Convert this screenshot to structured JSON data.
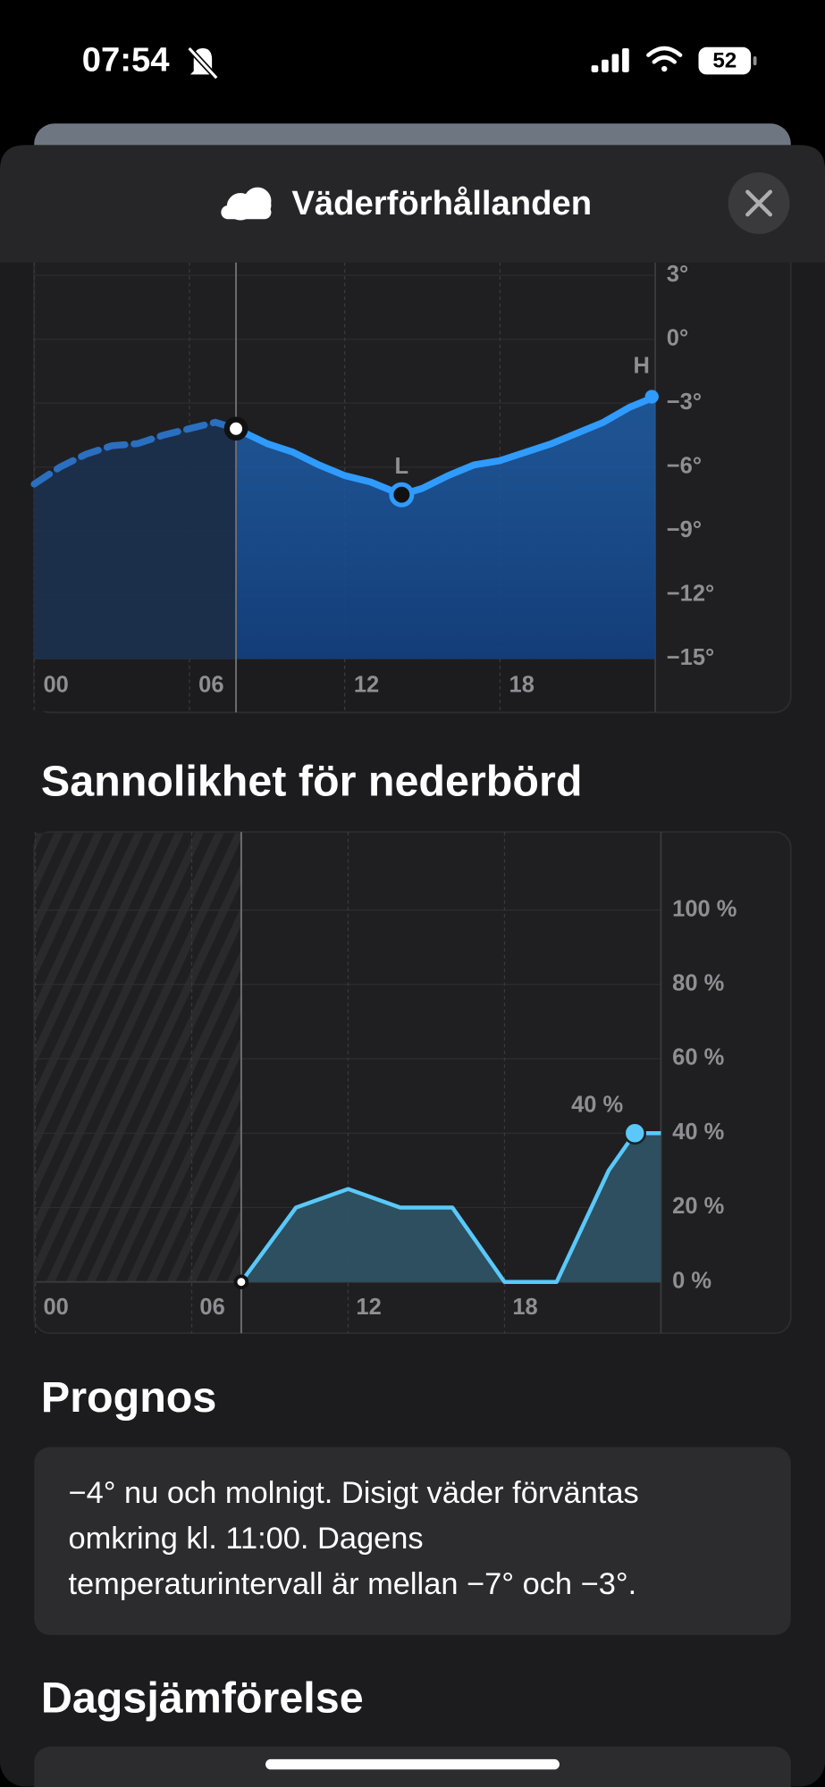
{
  "status_bar": {
    "time": "07:54",
    "battery": "52"
  },
  "header": {
    "title": "Väderförhållanden"
  },
  "temperature_chart": {
    "type": "line",
    "x_past": [
      0,
      1,
      2,
      3,
      4,
      5,
      6,
      7,
      7.8
    ],
    "past": [
      -6.8,
      -6.0,
      -5.4,
      -5.0,
      -4.9,
      -4.5,
      -4.2,
      -3.9,
      -4.2
    ],
    "x": [
      7.8,
      9,
      10,
      11,
      12,
      13,
      14.2,
      15,
      16,
      17,
      18,
      19,
      20,
      21,
      22,
      23,
      24
    ],
    "values": [
      -4.2,
      -4.9,
      -5.3,
      -5.9,
      -6.4,
      -6.7,
      -7.3,
      -7.0,
      -6.4,
      -5.9,
      -5.7,
      -5.3,
      -4.9,
      -4.4,
      -3.9,
      -3.2,
      -2.7
    ],
    "now": 7.8,
    "low_label": "L",
    "high_label": "H",
    "color": "#2f9bff",
    "xlim": [
      0,
      24
    ],
    "ylim": [
      -15,
      3.6
    ],
    "xticks": [
      {
        "value": 0,
        "label": "00"
      },
      {
        "value": 6,
        "label": "06"
      },
      12,
      18
    ],
    "yticks": [
      {
        "value": 3,
        "label": "3°"
      },
      {
        "value": 0,
        "label": "0°"
      },
      {
        "value": -3,
        "label": "−3°"
      },
      {
        "value": -6,
        "label": "−6°"
      },
      {
        "value": -9,
        "label": "−9°"
      },
      {
        "value": -12,
        "label": "−12°"
      },
      {
        "value": -15,
        "label": "−15°"
      }
    ]
  },
  "precipitation_chart": {
    "type": "area",
    "title": "Sannolikhet för nederbörd",
    "x": [
      7.9,
      10,
      12,
      14,
      16,
      18,
      20,
      22,
      23,
      24
    ],
    "values": [
      0,
      20,
      25,
      20,
      20,
      0,
      0,
      30,
      40,
      40
    ],
    "value_labels": [
      null,
      null,
      null,
      null,
      null,
      null,
      null,
      null,
      "40 %",
      null
    ],
    "now": 7.9,
    "color": "#5ac8fa",
    "xlim": [
      0,
      24
    ],
    "ylim": [
      0,
      121
    ],
    "xticks": [
      {
        "value": 0,
        "label": "00"
      },
      {
        "value": 6,
        "label": "06"
      },
      12,
      18
    ],
    "yticks": [
      {
        "value": 0,
        "label": "0 %"
      },
      {
        "value": 20,
        "label": "20 %"
      },
      {
        "value": 40,
        "label": "40 %"
      },
      {
        "value": 60,
        "label": "60 %"
      },
      {
        "value": 80,
        "label": "80 %"
      },
      {
        "value": 100,
        "label": "100 %"
      }
    ]
  },
  "forecast": {
    "title": "Prognos",
    "lines": [
      "−4° nu och molnigt. Disigt väder förväntas",
      "omkring kl. 11:00. Dagens",
      "temperaturintervall är mellan −7° och −3°."
    ]
  },
  "comparison": {
    "title": "Dagsjämförelse"
  }
}
